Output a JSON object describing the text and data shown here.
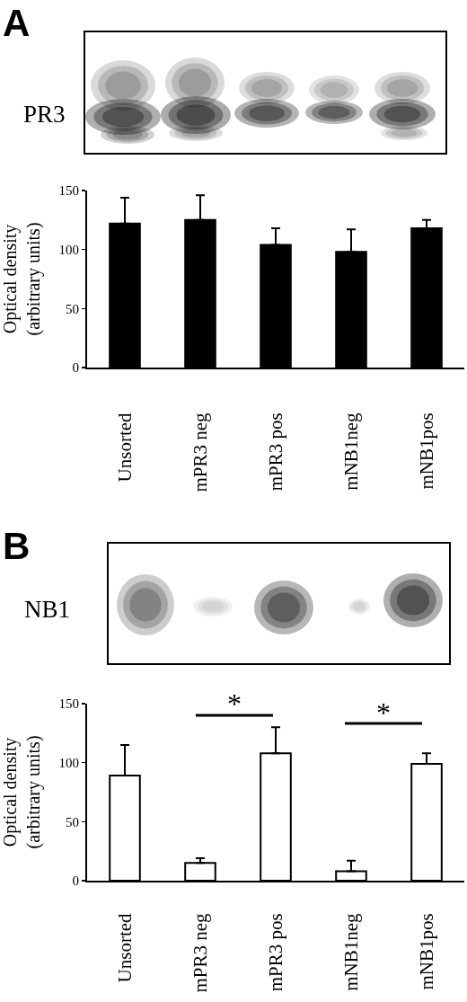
{
  "chart_data": [
    {
      "type": "bar",
      "title": "A",
      "ylabel": "Optical density\n(arbitrary units)",
      "annotations": [
        "PR3"
      ],
      "categories": [
        "Unsorted",
        "mPR3 neg",
        "mPR3 pos",
        "mNB1neg",
        "mNB1pos"
      ],
      "values": [
        122,
        125,
        104,
        98,
        118
      ],
      "color": "#000000",
      "errors": [
        [
          122,
          144
        ],
        [
          125,
          146
        ],
        [
          104,
          118
        ],
        [
          98,
          117
        ],
        [
          118,
          125
        ]
      ],
      "ylim": [
        0,
        150
      ],
      "yticks": [
        0,
        50,
        100,
        150
      ]
    },
    {
      "type": "bar",
      "title": "B",
      "ylabel": "Optical density\n(arbitrary units)",
      "annotations": [
        "NB1",
        "*",
        "*"
      ],
      "categories": [
        "Unsorted",
        "mPR3 neg",
        "mPR3 pos",
        "mNB1neg",
        "mNB1pos"
      ],
      "values": [
        89,
        15,
        108,
        8,
        99
      ],
      "color": "#ffffff",
      "errors": [
        [
          89,
          115
        ],
        [
          15,
          19
        ],
        [
          108,
          130
        ],
        [
          8,
          17
        ],
        [
          99,
          108
        ]
      ],
      "ylim": [
        0,
        150
      ],
      "yticks": [
        0,
        50,
        100,
        150
      ]
    }
  ]
}
